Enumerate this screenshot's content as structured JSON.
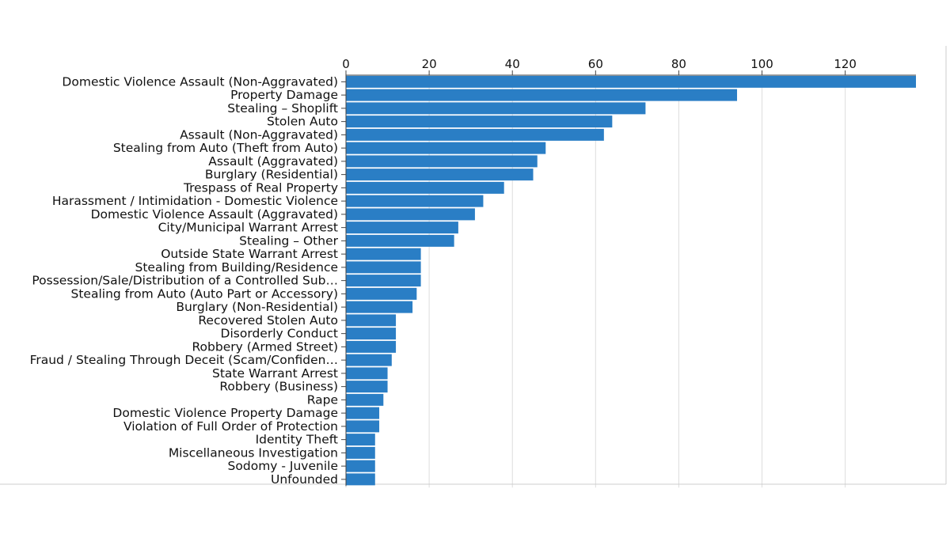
{
  "chart_data": {
    "type": "bar",
    "orientation": "horizontal",
    "title": "",
    "xlabel": "",
    "ylabel": "",
    "xlim": [
      0,
      137
    ],
    "x_ticks": [
      0,
      20,
      40,
      60,
      80,
      100,
      120
    ],
    "x_axis_position": "top",
    "grid": true,
    "legend": "none",
    "bar_color": "#2a7ec5",
    "categories": [
      "Domestic Violence Assault (Non-Aggravated)",
      "Property Damage",
      "Stealing – Shoplift",
      "Stolen Auto",
      "Assault (Non-Aggravated)",
      "Stealing from Auto (Theft from Auto)",
      "Assault (Aggravated)",
      "Burglary (Residential)",
      "Trespass of Real Property",
      "Harassment / Intimidation - Domestic Violence",
      "Domestic Violence Assault (Aggravated)",
      "City/Municipal Warrant Arrest",
      "Stealing – Other",
      "Outside State Warrant Arrest",
      "Stealing from Building/Residence",
      "Possession/Sale/Distribution of a Controlled Sub…",
      "Stealing from Auto (Auto Part or Accessory)",
      "Burglary (Non-Residential)",
      "Recovered Stolen Auto",
      "Disorderly Conduct",
      "Robbery (Armed Street)",
      "Fraud / Stealing Through Deceit (Scam/Confiden…",
      "State Warrant Arrest",
      "Robbery (Business)",
      "Rape",
      "Domestic Violence Property Damage",
      "Violation of Full Order of Protection",
      "Identity Theft",
      "Miscellaneous Investigation",
      "Sodomy - Juvenile",
      "Unfounded"
    ],
    "values": [
      137,
      94,
      72,
      64,
      62,
      48,
      46,
      45,
      38,
      33,
      31,
      27,
      26,
      18,
      18,
      18,
      17,
      16,
      12,
      12,
      12,
      11,
      10,
      10,
      9,
      8,
      8,
      7,
      7,
      7,
      7
    ]
  }
}
